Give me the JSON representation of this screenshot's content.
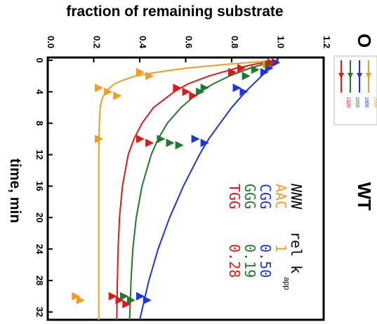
{
  "chart_data": {
    "type": "scatter",
    "orientation": "rotated-90-clockwise",
    "panel_label": "WT",
    "corner_label": "O",
    "xlabel": "time, min",
    "ylabel": "fraction of remaining substrate",
    "xlim": [
      0,
      33
    ],
    "ylim": [
      0.0,
      1.2
    ],
    "x_ticks": [
      "0",
      "4",
      "8",
      "12",
      "16",
      "20",
      "24",
      "28",
      "32"
    ],
    "y_ticks": [
      "0.0",
      "0.2",
      "0.4",
      "0.6",
      "0.8",
      "1.0",
      "1.2"
    ],
    "legend_header": {
      "col1": "NNN",
      "col2": "rel k",
      "sub": "app"
    },
    "series": [
      {
        "name": "AAC",
        "value_label": "1",
        "color": "#f39c1f",
        "points": [
          [
            0.5,
            0.95
          ],
          [
            1.5,
            0.4
          ],
          [
            2.0,
            0.44
          ],
          [
            3.5,
            0.22
          ],
          [
            4.0,
            0.26
          ],
          [
            4.5,
            0.3
          ],
          [
            10.0,
            0.22
          ],
          [
            30.0,
            0.12
          ],
          [
            30.5,
            0.14
          ]
        ],
        "curve": [
          [
            0,
            1.0
          ],
          [
            0.5,
            0.78
          ],
          [
            1,
            0.6
          ],
          [
            1.5,
            0.48
          ],
          [
            2,
            0.38
          ],
          [
            2.5,
            0.33
          ],
          [
            3,
            0.29
          ],
          [
            4,
            0.25
          ],
          [
            5,
            0.235
          ],
          [
            6,
            0.228
          ],
          [
            8,
            0.224
          ],
          [
            12,
            0.222
          ],
          [
            33,
            0.222
          ]
        ]
      },
      {
        "name": "CGG",
        "value_label": "0.50",
        "color": "#1e32e6",
        "points": [
          [
            0.3,
            0.99
          ],
          [
            1.0,
            0.96
          ],
          [
            1.5,
            0.94
          ],
          [
            3.5,
            0.82
          ],
          [
            4.0,
            0.85
          ],
          [
            10.0,
            0.64
          ],
          [
            10.5,
            0.68
          ],
          [
            30.0,
            0.4
          ],
          [
            30.5,
            0.43
          ]
        ],
        "curve": [
          [
            0,
            1.0
          ],
          [
            2,
            0.93
          ],
          [
            4,
            0.86
          ],
          [
            6,
            0.8
          ],
          [
            8,
            0.75
          ],
          [
            10,
            0.7
          ],
          [
            12,
            0.66
          ],
          [
            16,
            0.59
          ],
          [
            20,
            0.53
          ],
          [
            24,
            0.48
          ],
          [
            28,
            0.44
          ],
          [
            33,
            0.4
          ]
        ]
      },
      {
        "name": "GGG",
        "value_label": "0.19",
        "color": "#1d7a2a",
        "points": [
          [
            0.5,
            0.96
          ],
          [
            1.2,
            0.9
          ],
          [
            2.0,
            0.86
          ],
          [
            3.5,
            0.68
          ],
          [
            4.0,
            0.66
          ],
          [
            10.0,
            0.49
          ],
          [
            10.5,
            0.53
          ],
          [
            10.8,
            0.57
          ],
          [
            30.0,
            0.33
          ],
          [
            30.5,
            0.36
          ]
        ],
        "curve": [
          [
            0,
            1.0
          ],
          [
            1,
            0.88
          ],
          [
            2,
            0.79
          ],
          [
            3,
            0.72
          ],
          [
            4,
            0.66
          ],
          [
            6,
            0.58
          ],
          [
            8,
            0.52
          ],
          [
            10,
            0.48
          ],
          [
            12,
            0.45
          ],
          [
            16,
            0.41
          ],
          [
            20,
            0.385
          ],
          [
            24,
            0.37
          ],
          [
            28,
            0.362
          ],
          [
            33,
            0.356
          ]
        ]
      },
      {
        "name": "TGG",
        "value_label": "0.28",
        "color": "#e01818",
        "points": [
          [
            0.3,
            0.97
          ],
          [
            1.0,
            0.84
          ],
          [
            1.5,
            0.8
          ],
          [
            3.5,
            0.56
          ],
          [
            4.0,
            0.6
          ],
          [
            4.5,
            0.63
          ],
          [
            10.0,
            0.4
          ],
          [
            10.5,
            0.44
          ],
          [
            30.0,
            0.28
          ],
          [
            30.5,
            0.31
          ],
          [
            31.0,
            0.34
          ]
        ],
        "curve": [
          [
            0,
            1.0
          ],
          [
            0.5,
            0.9
          ],
          [
            1,
            0.82
          ],
          [
            2,
            0.7
          ],
          [
            3,
            0.61
          ],
          [
            4,
            0.55
          ],
          [
            6,
            0.46
          ],
          [
            8,
            0.41
          ],
          [
            10,
            0.375
          ],
          [
            12,
            0.35
          ],
          [
            16,
            0.325
          ],
          [
            20,
            0.312
          ],
          [
            24,
            0.306
          ],
          [
            28,
            0.303
          ],
          [
            33,
            0.3
          ]
        ]
      }
    ],
    "inset_legend_values": [
      "2000",
      "1900",
      "1600",
      "1320"
    ]
  }
}
